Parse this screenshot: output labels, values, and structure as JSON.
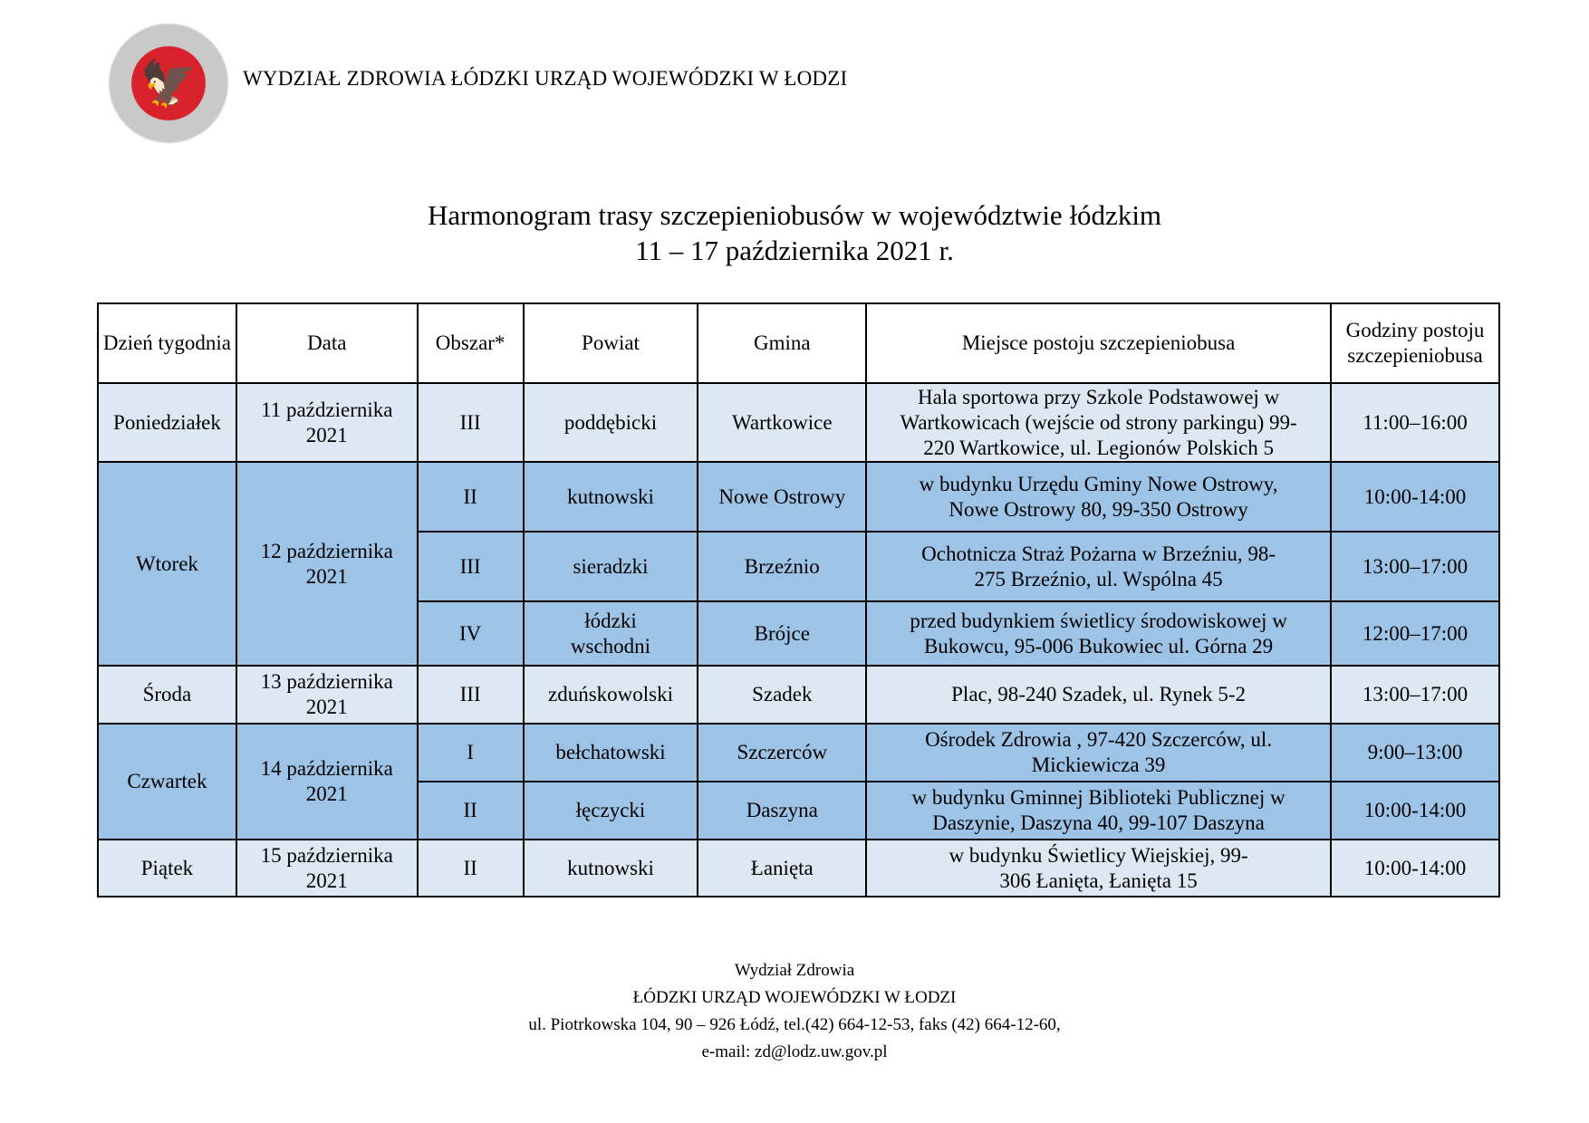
{
  "header": {
    "org": "WYDZIAŁ ZDROWIA ŁÓDZKI URZĄD WOJEWÓDZKI W ŁODZI",
    "logo_text": "ŁÓDZKI URZĄD WOJEWÓDZKI W ŁODZI"
  },
  "title": {
    "line1": "Harmonogram trasy szczepieniobusów w województwie łódzkim",
    "line2": "11 – 17 października 2021 r."
  },
  "colors": {
    "light_row": "#dde8f3",
    "dark_row": "#9dc3e6"
  },
  "table": {
    "headers": [
      "Dzień tygodnia",
      "Data",
      "Obszar*",
      "Powiat",
      "Gmina",
      "Miejsce postoju szczepieniobusa",
      "Godziny postoju szczepieniobusa"
    ],
    "rows": [
      {
        "day": "Poniedziałek",
        "date": "11 października 2021",
        "area": "III",
        "powiat": "poddębicki",
        "gmina": "Wartkowice",
        "place": "Hala sportowa przy Szkole Podstawowej w Wartkowicach (wejście od strony parkingu) 99-220 Wartkowice, ul. Legionów Polskich  5",
        "hours": "11:00–16:00"
      },
      {
        "day": "Wtorek",
        "date": "12 października 2021",
        "area": "II",
        "powiat": "kutnowski",
        "gmina": "Nowe Ostrowy",
        "place": "w budynku Urzędu Gminy Nowe Ostrowy, Nowe Ostrowy 80,  99-350 Ostrowy",
        "hours": "10:00-14:00"
      },
      {
        "area": "III",
        "powiat": "sieradzki",
        "gmina": "Brzeźnio",
        "place": "Ochotnicza Straż Pożarna w Brzeźniu, 98-275 Brzeźnio, ul. Wspólna 45",
        "hours": "13:00–17:00"
      },
      {
        "area": "IV",
        "powiat": "łódzki wschodni",
        "gmina": "Brójce",
        "place": "przed budynkiem świetlicy środowiskowej w Bukowcu, 95-006 Bukowiec  ul. Górna 29",
        "hours": "12:00–17:00"
      },
      {
        "day": "Środa",
        "date": "13 października 2021",
        "area": "III",
        "powiat": "zduńskowolski",
        "gmina": "Szadek",
        "place": "Plac, 98-240 Szadek, ul. Rynek 5-2",
        "hours": "13:00–17:00"
      },
      {
        "day": "Czwartek",
        "date": "14 października 2021",
        "area": "I",
        "powiat": "bełchatowski",
        "gmina": "Szczerców",
        "place": "Ośrodek Zdrowia , 97-420 Szczerców, ul. Mickiewicza 39",
        "hours": "9:00–13:00"
      },
      {
        "area": "II",
        "powiat": "łęczycki",
        "gmina": "Daszyna",
        "place": "w budynku Gminnej Biblioteki Publicznej w Daszynie, Daszyna 40, 99-107 Daszyna",
        "hours": "10:00-14:00"
      },
      {
        "day": "Piątek",
        "date": "15 października 2021",
        "area": "II",
        "powiat": "kutnowski",
        "gmina": "Łanięta",
        "place": "w budynku Świetlicy Wiejskiej, 99-306 Łanięta, Łanięta 15",
        "hours": "10:00-14:00"
      }
    ]
  },
  "footer": {
    "line1": "Wydział Zdrowia",
    "line2": "ŁÓDZKI URZĄD WOJEWÓDZKI W ŁODZI",
    "line3": "ul. Piotrkowska 104, 90 – 926 Łódź, tel.(42) 664-12-53, faks (42) 664-12-60,",
    "line4": "e-mail: zd@lodz.uw.gov.pl"
  }
}
